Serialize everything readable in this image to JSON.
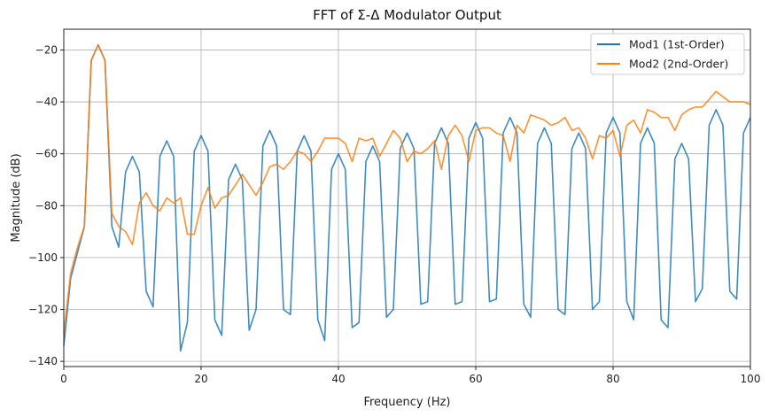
{
  "chart_data": {
    "type": "line",
    "title": "FFT of Σ-Δ Modulator Output",
    "xlabel": "Frequency (Hz)",
    "ylabel": "Magnitude (dB)",
    "xlim": [
      0,
      100
    ],
    "ylim": [
      -142,
      -12
    ],
    "xticks": [
      0,
      20,
      40,
      60,
      80,
      100
    ],
    "yticks": [
      -140,
      -120,
      -100,
      -80,
      -60,
      -40,
      -20
    ],
    "grid": true,
    "legend_position": "top-right",
    "x": [
      0,
      1,
      2,
      3,
      4,
      5,
      6,
      7,
      8,
      9,
      10,
      11,
      12,
      13,
      14,
      15,
      16,
      17,
      18,
      19,
      20,
      21,
      22,
      23,
      24,
      25,
      26,
      27,
      28,
      29,
      30,
      31,
      32,
      33,
      34,
      35,
      36,
      37,
      38,
      39,
      40,
      41,
      42,
      43,
      44,
      45,
      46,
      47,
      48,
      49,
      50,
      51,
      52,
      53,
      54,
      55,
      56,
      57,
      58,
      59,
      60,
      61,
      62,
      63,
      64,
      65,
      66,
      67,
      68,
      69,
      70,
      71,
      72,
      73,
      74,
      75,
      76,
      77,
      78,
      79,
      80,
      81,
      82,
      83,
      84,
      85,
      86,
      87,
      88,
      89,
      90,
      91,
      92,
      93,
      94,
      95,
      96,
      97,
      98,
      99,
      100
    ],
    "series": [
      {
        "name": "Mod1 (1st-Order)",
        "color": "#1f77b4",
        "values": [
          -134,
          -108,
          -98,
          -88,
          -24,
          -18,
          -24,
          -88,
          -96,
          -67,
          -61,
          -67,
          -113,
          -119,
          -61,
          -55,
          -61,
          -136,
          -125,
          -59,
          -53,
          -59,
          -124,
          -130,
          -70,
          -64,
          -70,
          -128,
          -120,
          -57,
          -51,
          -57,
          -120,
          -122,
          -59,
          -53,
          -59,
          -124,
          -132,
          -66,
          -60,
          -66,
          -127,
          -125,
          -63,
          -57,
          -63,
          -123,
          -120,
          -58,
          -52,
          -58,
          -118,
          -117,
          -56,
          -50,
          -56,
          -118,
          -117,
          -54,
          -48,
          -54,
          -117,
          -116,
          -52,
          -46,
          -52,
          -118,
          -123,
          -56,
          -50,
          -56,
          -120,
          -122,
          -58,
          -52,
          -58,
          -120,
          -117,
          -52,
          -46,
          -52,
          -117,
          -124,
          -56,
          -50,
          -56,
          -124,
          -127,
          -62,
          -56,
          -62,
          -117,
          -112,
          -49,
          -43,
          -49,
          -113,
          -116,
          -52,
          -46
        ]
      },
      {
        "name": "Mod2 (2nd-Order)",
        "color": "#ff7f0e",
        "values": [
          -129,
          -106,
          -96,
          -88,
          -24,
          -18,
          -24,
          -83,
          -88,
          -90,
          -95,
          -79,
          -75,
          -80,
          -82,
          -77,
          -79,
          -77,
          -91,
          -91,
          -80,
          -73,
          -81,
          -77,
          -76,
          -72,
          -68,
          -72,
          -76,
          -71,
          -65,
          -64,
          -66,
          -63,
          -59,
          -60,
          -63,
          -59,
          -54,
          -54,
          -54,
          -56,
          -63,
          -54,
          -55,
          -54,
          -61,
          -56,
          -51,
          -54,
          -63,
          -59,
          -60,
          -58,
          -55,
          -66,
          -53,
          -49,
          -53,
          -63,
          -51,
          -50,
          -50,
          -52,
          -53,
          -63,
          -49,
          -52,
          -45,
          -46,
          -47,
          -49,
          -48,
          -46,
          -51,
          -50,
          -54,
          -62,
          -53,
          -54,
          -51,
          -61,
          -49,
          -47,
          -52,
          -43,
          -44,
          -46,
          -46,
          -51,
          -45,
          -43,
          -42,
          -42,
          -39,
          -36,
          -38,
          -40,
          -40,
          -40,
          -41
        ]
      }
    ]
  }
}
